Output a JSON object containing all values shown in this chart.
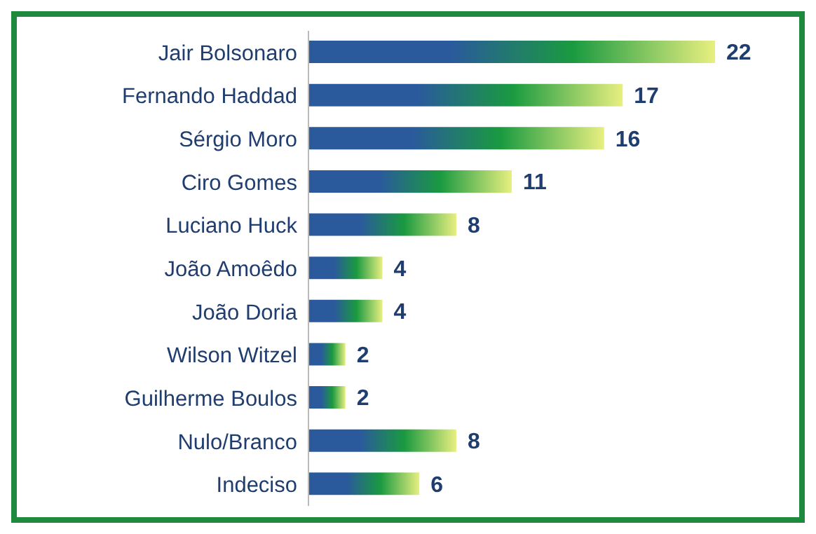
{
  "chart_data": {
    "type": "bar",
    "orientation": "horizontal",
    "categories": [
      "Jair Bolsonaro",
      "Fernando Haddad",
      "Sérgio Moro",
      "Ciro Gomes",
      "Luciano Huck",
      "João Amoêdo",
      "João Doria",
      "Wilson Witzel",
      "Guilherme Boulos",
      "Nulo/Branco",
      "Indeciso"
    ],
    "values": [
      22,
      17,
      16,
      11,
      8,
      4,
      4,
      2,
      2,
      8,
      6
    ],
    "color": "#2a5a9c",
    "data_labels": true
  }
}
